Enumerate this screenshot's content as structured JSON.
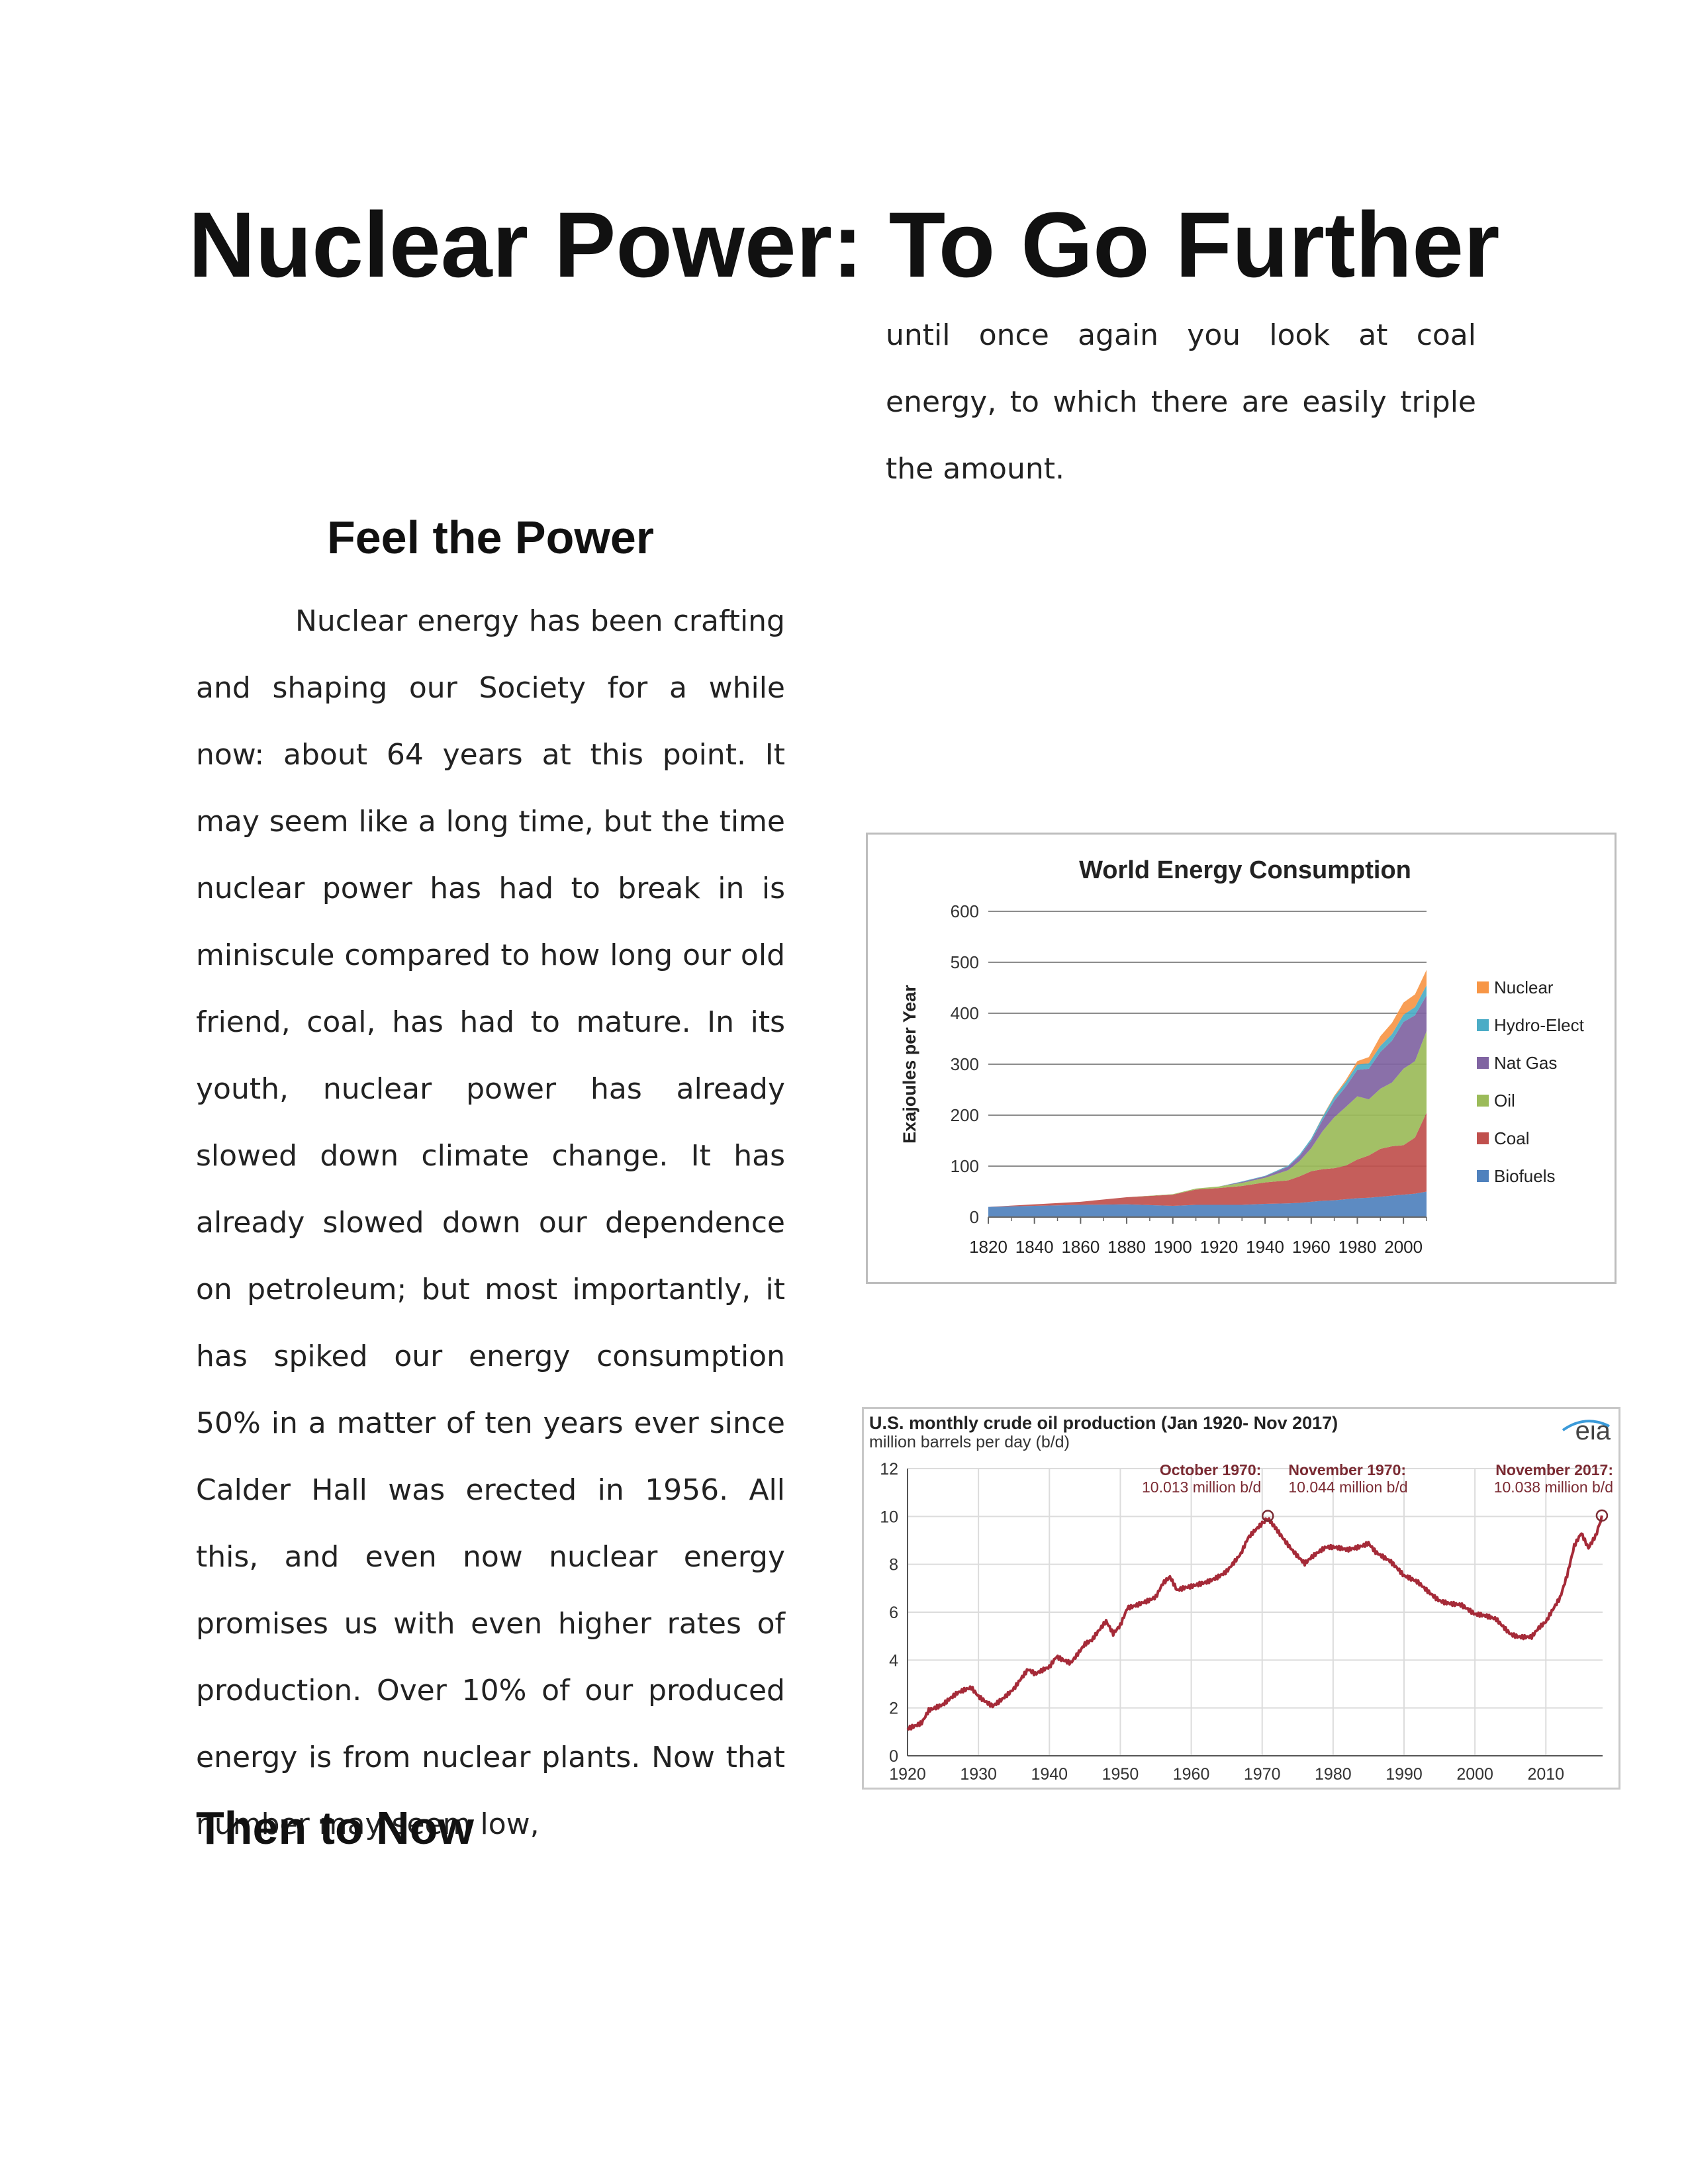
{
  "title": "Nuclear Power: To Go Further",
  "sections": {
    "feel_heading": "Feel the Power",
    "feel_text": "Nuclear energy has been crafting and shaping our Society for a while now: about 64 years at this point. It may seem like a long time, but the time nuclear power has had to break in is miniscule compared to how long our old friend, coal, has had to mature. In its youth, nuclear power has already slowed down climate change. It has already slowed down our dependence on petroleum; but most importantly, it has spiked our energy consumption 50% in a matter of ten years ever since Calder Hall was erected in 1956. All this, and even now nuclear energy promises us with even higher rates of production. Over 10% of our produced energy is from nuclear plants. Now that number may seem low,",
    "feel_text_cont": "until once again you look at coal energy, to which there are easily triple the amount.",
    "then_heading": "Then to Now"
  },
  "chart_data": [
    {
      "type": "area",
      "title": "World Energy Consumption",
      "xlabel": "",
      "ylabel": "Exajoules per Year",
      "x": [
        1820,
        1840,
        1860,
        1880,
        1900,
        1910,
        1920,
        1930,
        1940,
        1950,
        1955,
        1960,
        1965,
        1970,
        1975,
        1980,
        1985,
        1990,
        1995,
        2000,
        2005,
        2010
      ],
      "xticks": [
        1820,
        1840,
        1860,
        1880,
        1900,
        1920,
        1940,
        1960,
        1980,
        2000
      ],
      "yticks": [
        0,
        100,
        200,
        300,
        400,
        500,
        600
      ],
      "xlim": [
        1820,
        2010
      ],
      "ylim": [
        0,
        600
      ],
      "grid": true,
      "legend_position": "right",
      "series": [
        {
          "name": "Biofuels",
          "color": "#4f81bd",
          "values": [
            20,
            22,
            24,
            25,
            22,
            24,
            24,
            24,
            26,
            27,
            28,
            30,
            32,
            33,
            35,
            37,
            38,
            40,
            42,
            44,
            46,
            50
          ]
        },
        {
          "name": "Coal",
          "color": "#c0504d",
          "values": [
            0,
            3,
            6,
            14,
            22,
            30,
            33,
            37,
            42,
            45,
            52,
            60,
            62,
            63,
            66,
            76,
            83,
            94,
            97,
            97,
            110,
            155
          ]
        },
        {
          "name": "Oil",
          "color": "#9bbb59",
          "values": [
            0,
            0,
            0,
            0,
            1,
            2,
            3,
            6,
            9,
            20,
            30,
            45,
            75,
            100,
            115,
            124,
            110,
            118,
            125,
            150,
            150,
            160
          ]
        },
        {
          "name": "Nat Gas",
          "color": "#8064a2",
          "values": [
            0,
            0,
            0,
            0,
            0,
            0,
            0,
            2,
            3,
            7,
            10,
            15,
            22,
            32,
            40,
            52,
            60,
            72,
            82,
            92,
            90,
            70
          ]
        },
        {
          "name": "Hydro-Elect",
          "color": "#4bacc6",
          "values": [
            0,
            0,
            0,
            0,
            0,
            0,
            0,
            1,
            1,
            2,
            3,
            4,
            6,
            8,
            9,
            10,
            11,
            12,
            13,
            14,
            16,
            20
          ]
        },
        {
          "name": "Nuclear",
          "color": "#f79646",
          "values": [
            0,
            0,
            0,
            0,
            0,
            0,
            0,
            0,
            0,
            0,
            0,
            0,
            1,
            2,
            4,
            7,
            12,
            19,
            22,
            24,
            25,
            30
          ]
        }
      ]
    },
    {
      "type": "line",
      "title": "U.S. monthly crude oil production (Jan 1920- Nov 2017)",
      "subtitle": "million barrels per day (b/d)",
      "logo": "eia",
      "xticks": [
        1920,
        1930,
        1940,
        1950,
        1960,
        1970,
        1980,
        1990,
        2000,
        2010
      ],
      "yticks": [
        0,
        2,
        4,
        6,
        8,
        10,
        12
      ],
      "xlim": [
        1920,
        2018
      ],
      "ylim": [
        0,
        12
      ],
      "grid": true,
      "line_color": "#a52a38",
      "x": [
        1920,
        1922,
        1923,
        1925,
        1927,
        1929,
        1930,
        1932,
        1935,
        1937,
        1938,
        1940,
        1941,
        1943,
        1945,
        1946,
        1948,
        1949,
        1950,
        1951,
        1953,
        1955,
        1956,
        1957,
        1958,
        1960,
        1962,
        1965,
        1967,
        1968,
        1970,
        1970.8,
        1972,
        1974,
        1976,
        1977,
        1979,
        1982,
        1985,
        1986,
        1988,
        1990,
        1992,
        1995,
        1998,
        2000,
        2003,
        2005,
        2006,
        2008,
        2009,
        2010,
        2012,
        2013,
        2014,
        2015,
        2016,
        2017,
        2017.9
      ],
      "values": [
        1.2,
        1.5,
        2.0,
        2.1,
        2.5,
        2.8,
        2.5,
        2.2,
        2.8,
        3.5,
        3.3,
        3.7,
        4.2,
        4.0,
        4.7,
        4.8,
        5.5,
        5.0,
        5.4,
        6.2,
        6.5,
        6.7,
        7.2,
        7.4,
        6.8,
        7.0,
        7.3,
        7.8,
        8.4,
        9.0,
        9.6,
        10.0,
        9.5,
        8.8,
        8.1,
        8.3,
        8.6,
        8.6,
        9.0,
        8.6,
        8.1,
        7.4,
        7.2,
        6.6,
        6.3,
        5.8,
        5.7,
        5.2,
        5.1,
        5.0,
        5.3,
        5.5,
        6.5,
        7.5,
        8.8,
        9.4,
        8.8,
        9.3,
        10.04
      ],
      "annotations": [
        {
          "label": "October 1970:",
          "value_text": "10.013 million b/d",
          "x": 1970.8,
          "y": 10.013
        },
        {
          "label": "November 1970:",
          "value_text": "10.044 million b/d",
          "x": 1970.9,
          "y": 10.044
        },
        {
          "label": "November 2017:",
          "value_text": "10.038 million b/d",
          "x": 2017.9,
          "y": 10.038
        }
      ]
    }
  ]
}
